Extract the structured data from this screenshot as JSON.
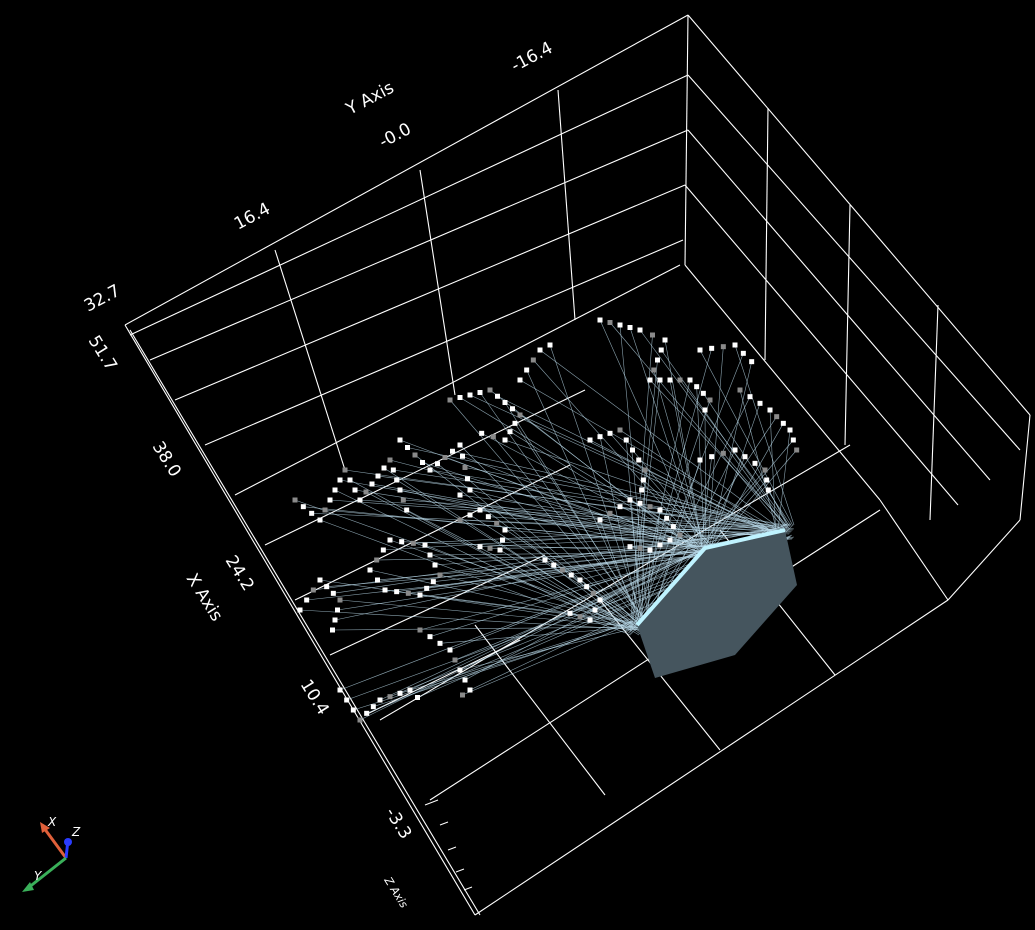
{
  "scene": {
    "background": "#000000",
    "grid_color": "#ffffff",
    "fiber_color": "#b8d8e8",
    "device_face_color": "#45555e",
    "device_edge_color": "#bff3ff",
    "point_color": "#ffffff",
    "point_dim_color": "#8a8a8a"
  },
  "axes": {
    "y_axis": {
      "title": "Y Axis",
      "ticks": [
        "-16.4",
        "-0.0",
        "16.4",
        "32.7"
      ]
    },
    "x_axis": {
      "title": "X Axis",
      "ticks": [
        "51.7",
        "38.0",
        "24.2",
        "10.4",
        "-3.3"
      ]
    },
    "z_axis": {
      "title": "Z Axis"
    }
  },
  "orientation_widget": {
    "x_label": "X",
    "y_label": "Y",
    "z_label": "Z",
    "x_color": "#e0603a",
    "y_color": "#3ab05a",
    "z_color": "#2a3cff"
  }
}
